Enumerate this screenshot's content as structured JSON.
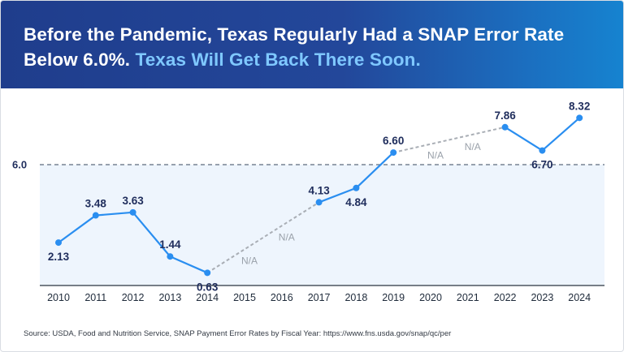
{
  "header": {
    "title_main": "Before the Pandemic, Texas Regularly Had a SNAP Error Rate Below 6.0%.",
    "title_highlight": "Texas Will Get Back There Soon."
  },
  "source": "Source: USDA, Food and Nutrition Service, SNAP Payment Error Rates by Fiscal Year: https://www.fns.usda.gov/snap/qc/per",
  "colors": {
    "line": "#2a8ef0",
    "dashed": "#a9aeb5",
    "band": "#eef5fd",
    "banner": "#23479a",
    "highlight": "#7fc8ff"
  },
  "chart_data": {
    "type": "line",
    "categories": [
      "2010",
      "2011",
      "2012",
      "2013",
      "2014",
      "2015",
      "2016",
      "2017",
      "2018",
      "2019",
      "2020",
      "2021",
      "2022",
      "2023",
      "2024"
    ],
    "values": [
      2.13,
      3.48,
      3.63,
      1.44,
      0.63,
      null,
      null,
      4.13,
      4.84,
      6.6,
      null,
      null,
      7.86,
      6.7,
      8.32
    ],
    "labels": [
      "2.13",
      "3.48",
      "3.63",
      "1.44",
      "0.63",
      "",
      "",
      "4.13",
      "4.84",
      "6.60",
      "",
      "",
      "7.86",
      "6.70",
      "8.32"
    ],
    "missing_label": "N/A",
    "reference_line": {
      "value": 6.0,
      "label": "6.0"
    },
    "ylim": [
      0,
      9.3
    ],
    "grid": false,
    "title": "",
    "xlabel": "",
    "ylabel": ""
  }
}
